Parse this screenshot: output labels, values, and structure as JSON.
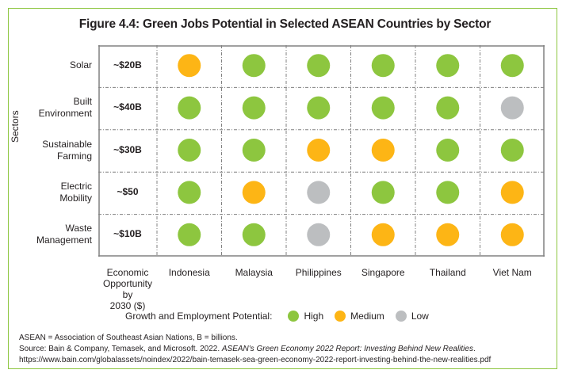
{
  "chart_data": {
    "type": "heatmap",
    "title": "Figure 4.4: Green Jobs Potential in Selected ASEAN Countries by Sector",
    "ylabel": "Sectors",
    "economic_header": "Economic Opportunity by 2030 ($)",
    "economic_header_lines": [
      "Economic",
      "Opportunity by",
      "2030 ($)"
    ],
    "countries": [
      "Indonesia",
      "Malaysia",
      "Philippines",
      "Singapore",
      "Thailand",
      "Viet Nam"
    ],
    "sectors": [
      {
        "name": "Solar",
        "lines": [
          "Solar"
        ],
        "opportunity": "~$20B",
        "ratings": [
          "Medium",
          "High",
          "High",
          "High",
          "High",
          "High"
        ]
      },
      {
        "name": "Built Environment",
        "lines": [
          "Built",
          "Environment"
        ],
        "opportunity": "~$40B",
        "ratings": [
          "High",
          "High",
          "High",
          "High",
          "High",
          "Low"
        ]
      },
      {
        "name": "Sustainable Farming",
        "lines": [
          "Sustainable",
          "Farming"
        ],
        "opportunity": "~$30B",
        "ratings": [
          "High",
          "High",
          "Medium",
          "Medium",
          "High",
          "High"
        ]
      },
      {
        "name": "Electric Mobility",
        "lines": [
          "Electric",
          "Mobility"
        ],
        "opportunity": "~$50",
        "ratings": [
          "High",
          "Medium",
          "Low",
          "High",
          "High",
          "Medium"
        ]
      },
      {
        "name": "Waste Management",
        "lines": [
          "Waste",
          "Management"
        ],
        "opportunity": "~$10B",
        "ratings": [
          "High",
          "High",
          "Low",
          "Medium",
          "Medium",
          "Medium"
        ]
      }
    ],
    "legend": {
      "title": "Growth and Employment Potential:",
      "entries": [
        {
          "label": "High",
          "color": "#8dc63f"
        },
        {
          "label": "Medium",
          "color": "#fdb515"
        },
        {
          "label": "Low",
          "color": "#bcbec0"
        }
      ]
    }
  },
  "notes": {
    "line1": "ASEAN = Association of Southeast Asian Nations, B = billions.",
    "line2_prefix": "Source: Bain & Company, Temasek, and Microsoft. 2022. ",
    "line2_italic": "ASEAN's Green Economy 2022 Report: Investing Behind New Realities",
    "line2_suffix": ".",
    "line3": "https://www.bain.com/globalassets/noindex/2022/bain-temasek-sea-green-economy-2022-report-investing-behind-the-new-realities.pdf"
  },
  "colors": {
    "frame": "#8dc63f",
    "grid": "#808080"
  }
}
